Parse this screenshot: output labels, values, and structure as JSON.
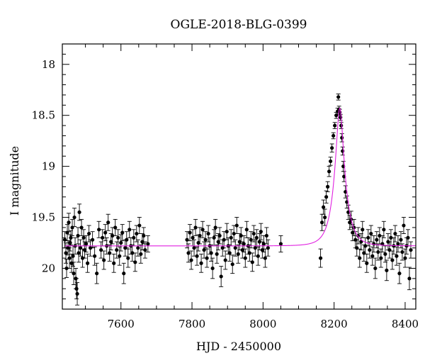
{
  "chart_data": {
    "type": "scatter",
    "title": "OGLE-2018-BLG-0399",
    "xlabel": "HJD - 2450000",
    "ylabel": "I magnitude",
    "xlim": [
      7435,
      8430
    ],
    "ylim": [
      20.4,
      17.8
    ],
    "y_inverted": true,
    "grid": false,
    "legend": "none",
    "x_ticks": [
      7600,
      7800,
      8000,
      8200,
      8400
    ],
    "y_ticks": [
      18,
      18.5,
      19,
      19.5,
      20
    ],
    "x_tick_labels": [
      "7600",
      "7800",
      "8000",
      "8200",
      "8400"
    ],
    "y_tick_labels": [
      "18",
      "18.5",
      "19",
      "19.5",
      "20"
    ],
    "colors": {
      "points": "#000000",
      "model": "#e020e0"
    },
    "model_curve": {
      "baseline": 19.78,
      "t0": 8216,
      "peak_mag": 18.43,
      "tE": 30,
      "color": "#e020e0"
    },
    "series": [
      {
        "points": [
          [
            7442,
            19.72,
            0.08
          ],
          [
            7445,
            19.85,
            0.1
          ],
          [
            7447,
            20.0,
            0.09
          ],
          [
            7449,
            19.65,
            0.08
          ],
          [
            7451,
            19.8,
            0.07
          ],
          [
            7453,
            19.55,
            0.09
          ],
          [
            7455,
            19.9,
            0.1
          ],
          [
            7457,
            19.75,
            0.08
          ],
          [
            7459,
            19.7,
            0.07
          ],
          [
            7461,
            19.95,
            0.09
          ],
          [
            7463,
            19.6,
            0.08
          ],
          [
            7465,
            19.88,
            0.1
          ],
          [
            7467,
            20.05,
            0.11
          ],
          [
            7469,
            19.5,
            0.09
          ],
          [
            7471,
            19.78,
            0.08
          ],
          [
            7473,
            20.1,
            0.1
          ],
          [
            7475,
            20.2,
            0.1
          ],
          [
            7477,
            20.25,
            0.11
          ],
          [
            7479,
            19.68,
            0.08
          ],
          [
            7481,
            19.85,
            0.09
          ],
          [
            7483,
            19.45,
            0.08
          ],
          [
            7486,
            19.8,
            0.08
          ],
          [
            7489,
            19.6,
            0.08
          ],
          [
            7492,
            19.9,
            0.09
          ],
          [
            7495,
            19.7,
            0.08
          ],
          [
            7498,
            19.82,
            0.08
          ],
          [
            7502,
            19.76,
            0.08
          ],
          [
            7506,
            19.95,
            0.09
          ],
          [
            7510,
            19.66,
            0.08
          ],
          [
            7514,
            19.8,
            0.08
          ],
          [
            7520,
            19.72,
            0.08
          ],
          [
            7526,
            19.88,
            0.09
          ],
          [
            7532,
            20.05,
            0.1
          ],
          [
            7538,
            19.62,
            0.08
          ],
          [
            7544,
            19.82,
            0.08
          ],
          [
            7548,
            19.7,
            0.08
          ],
          [
            7552,
            19.92,
            0.09
          ],
          [
            7556,
            19.65,
            0.08
          ],
          [
            7560,
            19.78,
            0.08
          ],
          [
            7564,
            19.55,
            0.08
          ],
          [
            7568,
            19.85,
            0.08
          ],
          [
            7572,
            19.74,
            0.08
          ],
          [
            7576,
            19.68,
            0.08
          ],
          [
            7580,
            19.95,
            0.09
          ],
          [
            7584,
            19.6,
            0.08
          ],
          [
            7588,
            19.82,
            0.08
          ],
          [
            7592,
            19.7,
            0.08
          ],
          [
            7596,
            19.88,
            0.09
          ],
          [
            7600,
            19.75,
            0.08
          ],
          [
            7604,
            19.65,
            0.08
          ],
          [
            7608,
            20.05,
            0.1
          ],
          [
            7612,
            19.8,
            0.08
          ],
          [
            7616,
            19.72,
            0.08
          ],
          [
            7620,
            19.9,
            0.09
          ],
          [
            7624,
            19.62,
            0.08
          ],
          [
            7628,
            19.78,
            0.08
          ],
          [
            7632,
            19.85,
            0.08
          ],
          [
            7636,
            19.7,
            0.08
          ],
          [
            7640,
            19.94,
            0.09
          ],
          [
            7644,
            19.66,
            0.08
          ],
          [
            7648,
            19.8,
            0.08
          ],
          [
            7652,
            19.58,
            0.08
          ],
          [
            7656,
            19.86,
            0.09
          ],
          [
            7660,
            19.74,
            0.08
          ],
          [
            7664,
            19.68,
            0.08
          ],
          [
            7668,
            19.82,
            0.08
          ],
          [
            7676,
            19.76,
            0.08
          ],
          [
            7786,
            19.72,
            0.08
          ],
          [
            7790,
            19.85,
            0.09
          ],
          [
            7794,
            19.65,
            0.08
          ],
          [
            7798,
            19.92,
            0.09
          ],
          [
            7802,
            19.7,
            0.08
          ],
          [
            7806,
            19.8,
            0.08
          ],
          [
            7810,
            19.6,
            0.08
          ],
          [
            7814,
            19.88,
            0.09
          ],
          [
            7818,
            19.75,
            0.08
          ],
          [
            7822,
            19.68,
            0.08
          ],
          [
            7826,
            19.95,
            0.09
          ],
          [
            7830,
            19.62,
            0.08
          ],
          [
            7834,
            19.82,
            0.08
          ],
          [
            7838,
            19.72,
            0.08
          ],
          [
            7842,
            19.9,
            0.09
          ],
          [
            7846,
            19.66,
            0.08
          ],
          [
            7850,
            19.78,
            0.08
          ],
          [
            7854,
            19.85,
            0.08
          ],
          [
            7858,
            20.0,
            0.1
          ],
          [
            7862,
            19.7,
            0.08
          ],
          [
            7866,
            19.6,
            0.08
          ],
          [
            7870,
            19.86,
            0.09
          ],
          [
            7874,
            19.74,
            0.08
          ],
          [
            7878,
            19.68,
            0.08
          ],
          [
            7882,
            20.08,
            0.1
          ],
          [
            7886,
            19.8,
            0.08
          ],
          [
            7890,
            19.72,
            0.08
          ],
          [
            7894,
            19.92,
            0.09
          ],
          [
            7898,
            19.64,
            0.08
          ],
          [
            7902,
            19.78,
            0.08
          ],
          [
            7906,
            19.85,
            0.08
          ],
          [
            7910,
            19.7,
            0.08
          ],
          [
            7914,
            19.96,
            0.09
          ],
          [
            7918,
            19.66,
            0.08
          ],
          [
            7922,
            19.8,
            0.08
          ],
          [
            7926,
            19.58,
            0.08
          ],
          [
            7930,
            19.86,
            0.09
          ],
          [
            7934,
            19.74,
            0.08
          ],
          [
            7938,
            19.68,
            0.08
          ],
          [
            7942,
            19.82,
            0.08
          ],
          [
            7946,
            19.76,
            0.08
          ],
          [
            7950,
            19.9,
            0.09
          ],
          [
            7954,
            19.62,
            0.08
          ],
          [
            7958,
            19.78,
            0.08
          ],
          [
            7962,
            19.85,
            0.08
          ],
          [
            7966,
            19.72,
            0.08
          ],
          [
            7970,
            19.94,
            0.09
          ],
          [
            7974,
            19.66,
            0.08
          ],
          [
            7978,
            19.8,
            0.08
          ],
          [
            7982,
            19.7,
            0.08
          ],
          [
            7986,
            19.88,
            0.09
          ],
          [
            7990,
            19.74,
            0.08
          ],
          [
            7994,
            19.64,
            0.08
          ],
          [
            7998,
            19.82,
            0.08
          ],
          [
            8002,
            19.76,
            0.08
          ],
          [
            8006,
            19.9,
            0.09
          ],
          [
            8010,
            19.68,
            0.08
          ],
          [
            8014,
            19.8,
            0.08
          ],
          [
            8050,
            19.76,
            0.08
          ],
          [
            8162,
            19.9,
            0.09
          ],
          [
            8166,
            19.55,
            0.08
          ],
          [
            8170,
            19.4,
            0.07
          ],
          [
            8174,
            19.5,
            0.08
          ],
          [
            8178,
            19.3,
            0.06
          ],
          [
            8182,
            19.2,
            0.05
          ],
          [
            8186,
            19.05,
            0.05
          ],
          [
            8190,
            18.95,
            0.04
          ],
          [
            8194,
            18.82,
            0.04
          ],
          [
            8198,
            18.7,
            0.03
          ],
          [
            8202,
            18.6,
            0.03
          ],
          [
            8206,
            18.5,
            0.03
          ],
          [
            8210,
            18.46,
            0.03
          ],
          [
            8212,
            18.32,
            0.03
          ],
          [
            8214,
            18.44,
            0.03
          ],
          [
            8216,
            18.47,
            0.03
          ],
          [
            8218,
            18.52,
            0.03
          ],
          [
            8220,
            18.6,
            0.03
          ],
          [
            8222,
            18.72,
            0.04
          ],
          [
            8224,
            18.85,
            0.04
          ],
          [
            8226,
            19.0,
            0.05
          ],
          [
            8228,
            19.1,
            0.05
          ],
          [
            8232,
            19.25,
            0.06
          ],
          [
            8236,
            19.35,
            0.06
          ],
          [
            8240,
            19.45,
            0.07
          ],
          [
            8244,
            19.55,
            0.07
          ],
          [
            8248,
            19.52,
            0.08
          ],
          [
            8252,
            19.65,
            0.08
          ],
          [
            8256,
            19.6,
            0.08
          ],
          [
            8260,
            19.72,
            0.08
          ],
          [
            8264,
            19.8,
            0.08
          ],
          [
            8268,
            19.68,
            0.08
          ],
          [
            8272,
            19.9,
            0.09
          ],
          [
            8276,
            19.74,
            0.08
          ],
          [
            8280,
            19.62,
            0.08
          ],
          [
            8284,
            19.85,
            0.08
          ],
          [
            8288,
            19.78,
            0.08
          ],
          [
            8292,
            19.95,
            0.09
          ],
          [
            8296,
            19.7,
            0.08
          ],
          [
            8300,
            19.82,
            0.08
          ],
          [
            8304,
            19.66,
            0.08
          ],
          [
            8308,
            19.88,
            0.09
          ],
          [
            8312,
            19.76,
            0.08
          ],
          [
            8316,
            20.0,
            0.1
          ],
          [
            8320,
            19.72,
            0.08
          ],
          [
            8324,
            19.84,
            0.08
          ],
          [
            8328,
            19.68,
            0.08
          ],
          [
            8332,
            19.9,
            0.09
          ],
          [
            8336,
            19.76,
            0.08
          ],
          [
            8340,
            19.62,
            0.08
          ],
          [
            8344,
            19.86,
            0.08
          ],
          [
            8348,
            20.02,
            0.1
          ],
          [
            8352,
            19.74,
            0.08
          ],
          [
            8356,
            19.82,
            0.08
          ],
          [
            8360,
            19.7,
            0.08
          ],
          [
            8364,
            19.92,
            0.09
          ],
          [
            8368,
            19.78,
            0.08
          ],
          [
            8372,
            19.66,
            0.08
          ],
          [
            8376,
            19.88,
            0.09
          ],
          [
            8380,
            19.76,
            0.08
          ],
          [
            8384,
            20.05,
            0.1
          ],
          [
            8388,
            19.72,
            0.08
          ],
          [
            8392,
            19.84,
            0.08
          ],
          [
            8396,
            19.58,
            0.08
          ],
          [
            8400,
            19.9,
            0.09
          ],
          [
            8404,
            19.78,
            0.08
          ],
          [
            8408,
            19.7,
            0.08
          ],
          [
            8412,
            20.1,
            0.11
          ],
          [
            8416,
            19.82,
            0.08
          ]
        ]
      }
    ]
  }
}
